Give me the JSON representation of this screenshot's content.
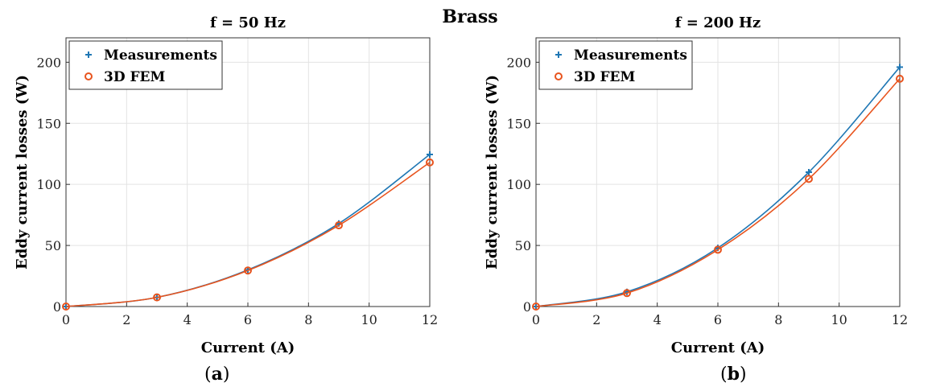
{
  "suptitle": "Brass",
  "panel_labels": [
    "(a)",
    "(b)"
  ],
  "colors": {
    "measurements": "#1f77b4",
    "fem": "#e8541e",
    "grid": "#e3e3e3",
    "axis": "#333333"
  },
  "chart_data": [
    {
      "type": "line",
      "title": "f = 50 Hz",
      "xlabel": "Current (A)",
      "ylabel": "Eddy current losses (W)",
      "xlim": [
        0,
        12
      ],
      "ylim": [
        0,
        220
      ],
      "xticks": [
        0,
        2,
        4,
        6,
        8,
        10,
        12
      ],
      "yticks": [
        0,
        50,
        100,
        150,
        200
      ],
      "grid": true,
      "legend": "top-left",
      "series": [
        {
          "name": "Measurements",
          "marker": "plus",
          "x": [
            0,
            3,
            6,
            9,
            12
          ],
          "y": [
            0,
            7.5,
            30,
            68,
            124.5
          ]
        },
        {
          "name": "3D FEM",
          "marker": "circle",
          "x": [
            0,
            3,
            6,
            9,
            12
          ],
          "y": [
            0,
            7.5,
            29.5,
            66.5,
            118
          ]
        }
      ]
    },
    {
      "type": "line",
      "title": "f = 200 Hz",
      "xlabel": "Current (A)",
      "ylabel": "Eddy current losses (W)",
      "xlim": [
        0,
        12
      ],
      "ylim": [
        0,
        220
      ],
      "xticks": [
        0,
        2,
        4,
        6,
        8,
        10,
        12
      ],
      "yticks": [
        0,
        50,
        100,
        150,
        200
      ],
      "grid": true,
      "legend": "top-left",
      "series": [
        {
          "name": "Measurements",
          "marker": "plus",
          "x": [
            0,
            3,
            6,
            9,
            12
          ],
          "y": [
            0,
            12,
            48,
            110,
            196
          ]
        },
        {
          "name": "3D FEM",
          "marker": "circle",
          "x": [
            0,
            3,
            6,
            9,
            12
          ],
          "y": [
            0,
            11,
            46.5,
            104.5,
            186.5
          ]
        }
      ]
    }
  ]
}
